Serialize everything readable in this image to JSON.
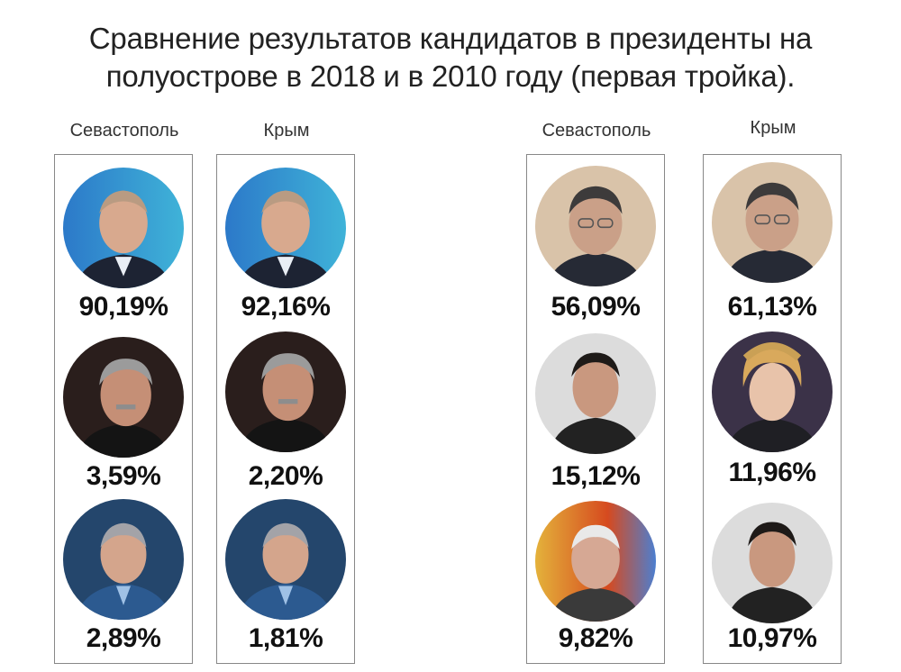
{
  "title_line1": "Сравнение результатов кандидатов в президенты на",
  "title_line2": "полуострове в 2018 и в 2010 году (первая тройка).",
  "columns": [
    {
      "label": "Севастополь",
      "results": [
        {
          "value": "90,19%",
          "photo": "portrait-1"
        },
        {
          "value": "3,59%",
          "photo": "portrait-2"
        },
        {
          "value": "2,89%",
          "photo": "portrait-3"
        }
      ]
    },
    {
      "label": "Крым",
      "results": [
        {
          "value": "92,16%",
          "photo": "portrait-1"
        },
        {
          "value": "2,20%",
          "photo": "portrait-2"
        },
        {
          "value": "1,81%",
          "photo": "portrait-3"
        }
      ]
    },
    {
      "label": "Севастополь",
      "results": [
        {
          "value": "56,09%",
          "photo": "portrait-4"
        },
        {
          "value": "15,12%",
          "photo": "portrait-5"
        },
        {
          "value": "9,82%",
          "photo": "portrait-6"
        }
      ]
    },
    {
      "label": "Крым",
      "results": [
        {
          "value": "61,13%",
          "photo": "portrait-4"
        },
        {
          "value": "11,96%",
          "photo": "portrait-7"
        },
        {
          "value": "10,97%",
          "photo": "portrait-5"
        }
      ]
    }
  ]
}
